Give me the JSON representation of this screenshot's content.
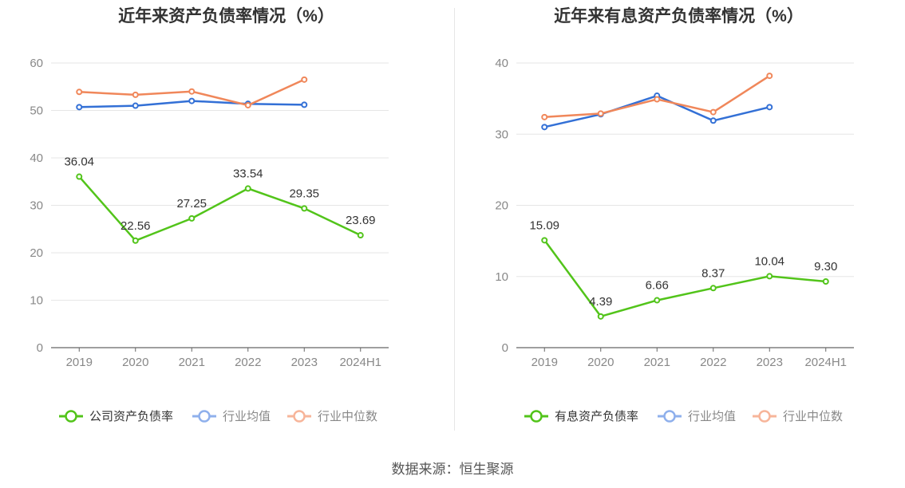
{
  "source": "数据来源：恒生聚源",
  "chart_data": [
    {
      "type": "line",
      "title": "近年来资产负债率情况（%）",
      "categories": [
        "2019",
        "2020",
        "2021",
        "2022",
        "2023",
        "2024H1"
      ],
      "ylim": [
        0,
        60
      ],
      "yticks": [
        0,
        10,
        20,
        30,
        40,
        50,
        60
      ],
      "grid": true,
      "legend_position": "bottom",
      "series": [
        {
          "name": "公司资产负债率",
          "color": "#52c41a",
          "values": [
            36.04,
            22.56,
            27.25,
            33.54,
            29.35,
            23.69
          ],
          "labels": [
            "36.04",
            "22.56",
            "27.25",
            "33.54",
            "29.35",
            "23.69"
          ]
        },
        {
          "name": "行业均值",
          "color": "#3370d6",
          "values": [
            50.7,
            51.0,
            52.0,
            51.4,
            51.2,
            null
          ]
        },
        {
          "name": "行业中位数",
          "color": "#f0875a",
          "values": [
            53.9,
            53.3,
            54.0,
            51.1,
            56.5,
            null
          ]
        }
      ]
    },
    {
      "type": "line",
      "title": "近年来有息资产负债率情况（%）",
      "categories": [
        "2019",
        "2020",
        "2021",
        "2022",
        "2023",
        "2024H1"
      ],
      "ylim": [
        0,
        40
      ],
      "yticks": [
        0,
        10,
        20,
        30,
        40
      ],
      "grid": true,
      "legend_position": "bottom",
      "series": [
        {
          "name": "有息资产负债率",
          "color": "#52c41a",
          "values": [
            15.09,
            4.39,
            6.66,
            8.37,
            10.04,
            9.3
          ],
          "labels": [
            "15.09",
            "4.39",
            "6.66",
            "8.37",
            "10.04",
            "9.30"
          ]
        },
        {
          "name": "行业均值",
          "color": "#3370d6",
          "values": [
            31.0,
            32.8,
            35.4,
            31.9,
            33.8,
            null
          ]
        },
        {
          "name": "行业中位数",
          "color": "#f0875a",
          "values": [
            32.4,
            32.9,
            34.9,
            33.1,
            38.2,
            null
          ]
        }
      ]
    }
  ]
}
